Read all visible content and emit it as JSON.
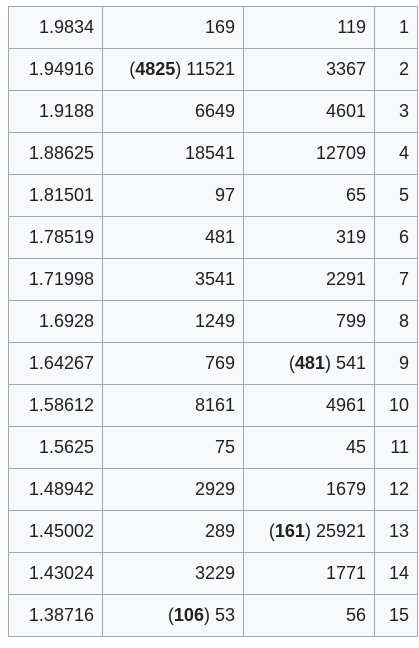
{
  "rows": [
    {
      "ratio": "1.9834",
      "a": {
        "text": "169"
      },
      "b": {
        "text": "119"
      },
      "index": "1"
    },
    {
      "ratio": "1.94916",
      "a": {
        "bold": "4825",
        "text": "11521"
      },
      "b": {
        "text": "3367"
      },
      "index": "2"
    },
    {
      "ratio": "1.9188",
      "a": {
        "text": "6649"
      },
      "b": {
        "text": "4601"
      },
      "index": "3"
    },
    {
      "ratio": "1.88625",
      "a": {
        "text": "18541"
      },
      "b": {
        "text": "12709"
      },
      "index": "4"
    },
    {
      "ratio": "1.81501",
      "a": {
        "text": "97"
      },
      "b": {
        "text": "65"
      },
      "index": "5"
    },
    {
      "ratio": "1.78519",
      "a": {
        "text": "481"
      },
      "b": {
        "text": "319"
      },
      "index": "6"
    },
    {
      "ratio": "1.71998",
      "a": {
        "text": "3541"
      },
      "b": {
        "text": "2291"
      },
      "index": "7"
    },
    {
      "ratio": "1.6928",
      "a": {
        "text": "1249"
      },
      "b": {
        "text": "799"
      },
      "index": "8"
    },
    {
      "ratio": "1.64267",
      "a": {
        "text": "769"
      },
      "b": {
        "bold": "481",
        "text": "541"
      },
      "index": "9"
    },
    {
      "ratio": "1.58612",
      "a": {
        "text": "8161"
      },
      "b": {
        "text": "4961"
      },
      "index": "10"
    },
    {
      "ratio": "1.5625",
      "a": {
        "text": "75"
      },
      "b": {
        "text": "45"
      },
      "index": "11"
    },
    {
      "ratio": "1.48942",
      "a": {
        "text": "2929"
      },
      "b": {
        "text": "1679"
      },
      "index": "12"
    },
    {
      "ratio": "1.45002",
      "a": {
        "text": "289"
      },
      "b": {
        "bold": "161",
        "text": "25921"
      },
      "index": "13"
    },
    {
      "ratio": "1.43024",
      "a": {
        "text": "3229"
      },
      "b": {
        "text": "1771"
      },
      "index": "14"
    },
    {
      "ratio": "1.38716",
      "a": {
        "bold": "106",
        "text": "53"
      },
      "b": {
        "text": "56"
      },
      "index": "15"
    }
  ]
}
